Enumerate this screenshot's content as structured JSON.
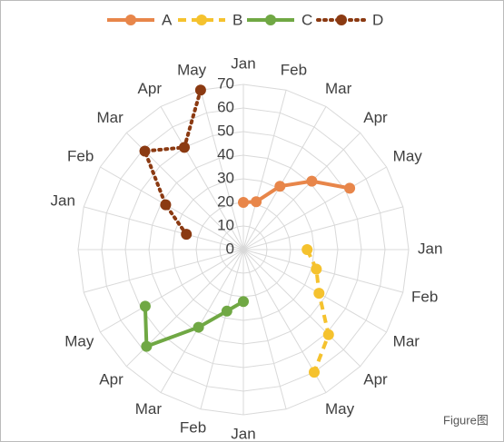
{
  "chart_data": {
    "type": "radar",
    "categories": [
      "Jan",
      "Feb",
      "Mar",
      "Apr",
      "May",
      null,
      "Jan",
      "Feb",
      "Mar",
      "Apr",
      "May",
      null,
      "Jan",
      "Feb",
      "Mar",
      "Apr",
      "May",
      null,
      null,
      "Jan",
      "Feb",
      "Mar",
      "Apr",
      "May"
    ],
    "series": [
      {
        "name": "A",
        "color": "#e8864a",
        "style": "solid",
        "values": [
          20,
          21,
          31,
          41,
          52,
          null,
          null,
          null,
          null,
          null,
          null,
          null,
          null,
          null,
          null,
          null,
          null,
          null,
          null,
          null,
          null,
          null,
          null,
          null
        ]
      },
      {
        "name": "B",
        "color": "#f5c22e",
        "style": "dashed",
        "values": [
          null,
          null,
          null,
          null,
          null,
          null,
          27,
          32,
          37,
          51,
          60,
          null,
          null,
          null,
          null,
          null,
          null,
          null,
          null,
          null,
          null,
          null,
          null,
          null
        ]
      },
      {
        "name": "C",
        "color": "#70a844",
        "style": "solid",
        "values": [
          null,
          null,
          null,
          null,
          null,
          null,
          null,
          null,
          null,
          null,
          null,
          null,
          22,
          27,
          38,
          58,
          48,
          null,
          null,
          null,
          null,
          null,
          null,
          null
        ]
      },
      {
        "name": "D",
        "color": "#8b3a12",
        "style": "dotted",
        "values": [
          null,
          null,
          null,
          null,
          null,
          null,
          null,
          null,
          null,
          null,
          null,
          null,
          null,
          null,
          null,
          null,
          null,
          null,
          null,
          25,
          38,
          59,
          50,
          70
        ]
      }
    ],
    "ylim": [
      0,
      70
    ],
    "yticks": [
      0,
      10,
      20,
      30,
      40,
      50,
      60,
      70
    ],
    "grid": true,
    "legend": "top",
    "watermark": "Figure图"
  }
}
